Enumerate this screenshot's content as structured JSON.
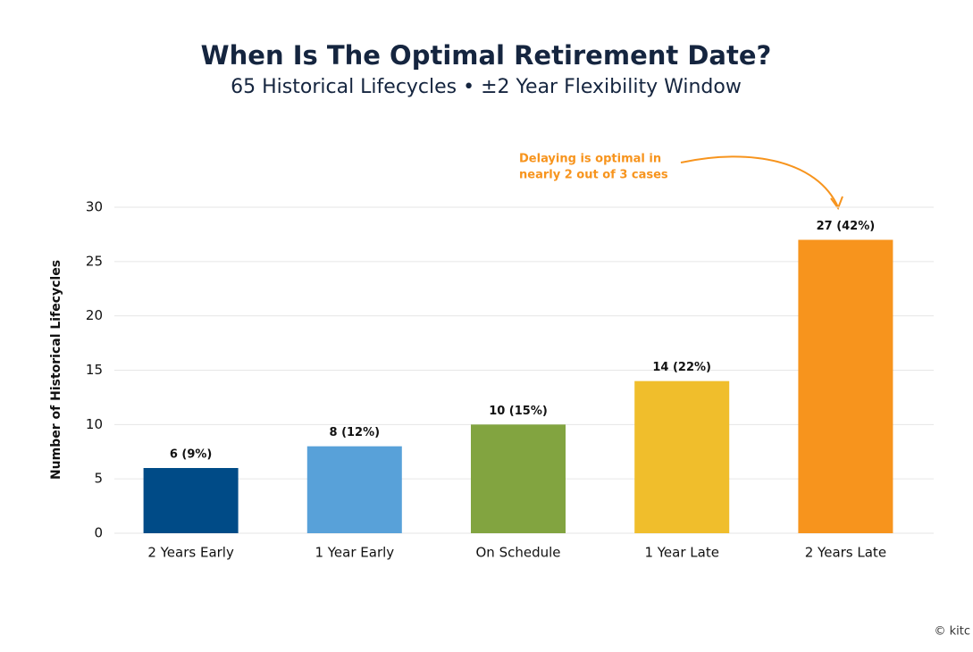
{
  "chart_data": {
    "type": "bar",
    "title": "When Is The Optimal Retirement Date?",
    "subtitle": "65 Historical Lifecycles • ±2 Year Flexibility Window",
    "y_label": "Number of Historical Lifecycles",
    "categories": [
      "2 Years Early",
      "1 Year Early",
      "On Schedule",
      "1 Year Late",
      "2 Years Late"
    ],
    "values": [
      6,
      8,
      10,
      14,
      27
    ],
    "value_labels": [
      "6 (9%)",
      "8 (12%)",
      "10 (15%)",
      "14 (22%)",
      "27 (42%)"
    ],
    "colors": [
      "#004b87",
      "#58a1d9",
      "#82a440",
      "#f0be2c",
      "#f7941d"
    ],
    "ylim": [
      0,
      30
    ],
    "yticks": [
      0,
      5,
      10,
      15,
      20,
      25,
      30
    ],
    "grid": true,
    "annotation": [
      "Delaying is optimal in",
      "nearly 2 out of 3 cases"
    ],
    "credit": "© kitc"
  }
}
